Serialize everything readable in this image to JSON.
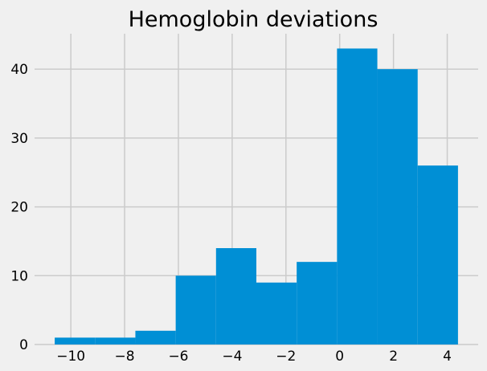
{
  "chart_data": {
    "type": "bar",
    "title": "Hemoglobin deviations",
    "xlabel": "",
    "ylabel": "",
    "bin_edges": [
      -10.6,
      -9.1,
      -7.6,
      -6.1,
      -4.6,
      -3.1,
      -1.6,
      -0.1,
      1.4,
      2.9,
      4.4
    ],
    "values": [
      1,
      1,
      2,
      10,
      14,
      9,
      12,
      43,
      40,
      26
    ],
    "xlim": [
      -11.35,
      5.15
    ],
    "ylim": [
      0,
      45.15
    ],
    "xticks": [
      -10,
      -8,
      -6,
      -4,
      -2,
      0,
      2,
      4
    ],
    "xtick_labels": [
      "−10",
      "−8",
      "−6",
      "−4",
      "−2",
      "0",
      "2",
      "4"
    ],
    "yticks": [
      0,
      10,
      20,
      30,
      40
    ],
    "ytick_labels": [
      "0",
      "10",
      "20",
      "30",
      "40"
    ],
    "grid": true,
    "bar_color": "#008fd5",
    "background_color": "#f0f0f0",
    "grid_color": "#cbcbcb"
  }
}
